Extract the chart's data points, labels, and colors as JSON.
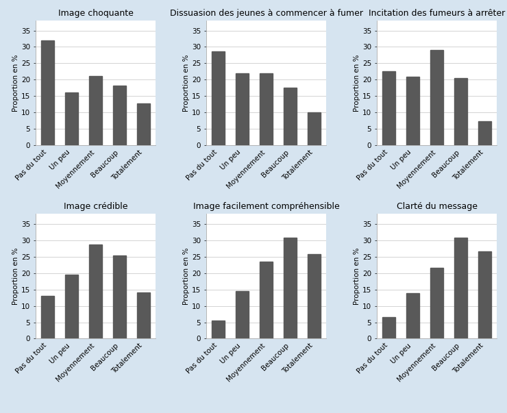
{
  "subplots": [
    {
      "title": "Image choquante",
      "values": [
        32.0,
        16.1,
        21.2,
        18.2,
        12.7
      ],
      "categories": [
        "Pas du tout",
        "Un peu",
        "Moyennement",
        "Beaucoup",
        "Totalement"
      ]
    },
    {
      "title": "Dissuasion des jeunes à commencer à fumer",
      "values": [
        28.7,
        22.0,
        22.0,
        17.5,
        10.1
      ],
      "categories": [
        "Pas du tout",
        "Un peu",
        "Moyennement",
        "Beaucoup",
        "Totalement"
      ]
    },
    {
      "title": "Incitation des fumeurs à arrêter",
      "values": [
        22.5,
        21.0,
        29.0,
        20.5,
        7.3
      ],
      "categories": [
        "Pas du tout",
        "Un peu",
        "Moyennement",
        "Beaucoup",
        "Totalement"
      ]
    },
    {
      "title": "Image crédible",
      "values": [
        13.0,
        19.5,
        28.7,
        25.3,
        14.1
      ],
      "categories": [
        "Pas du tout",
        "Un peu",
        "Moyennement",
        "Beaucoup",
        "Totalement"
      ]
    },
    {
      "title": "Image facilement compréhensible",
      "values": [
        5.6,
        14.5,
        23.5,
        30.8,
        25.8
      ],
      "categories": [
        "Pas du tout",
        "Un peu",
        "Moyennement",
        "Beaucoup",
        "Totalement"
      ]
    },
    {
      "title": "Clarté du message",
      "values": [
        6.5,
        13.8,
        21.5,
        30.8,
        26.5
      ],
      "categories": [
        "Pas du tout",
        "Un peu",
        "Moyennement",
        "Beaucoup",
        "Totalement"
      ]
    }
  ],
  "bar_color": "#595959",
  "figure_facecolor": "#d6e4f0",
  "axes_facecolor": "#ffffff",
  "ylabel": "Proportion en %",
  "ylim": [
    0,
    38
  ],
  "yticks": [
    0,
    5,
    10,
    15,
    20,
    25,
    30,
    35
  ],
  "bar_width": 0.55,
  "tick_fontsize": 7.5,
  "title_fontsize": 9,
  "ylabel_fontsize": 7.5,
  "grid_color": "#cccccc",
  "spine_color": "#aaaaaa"
}
